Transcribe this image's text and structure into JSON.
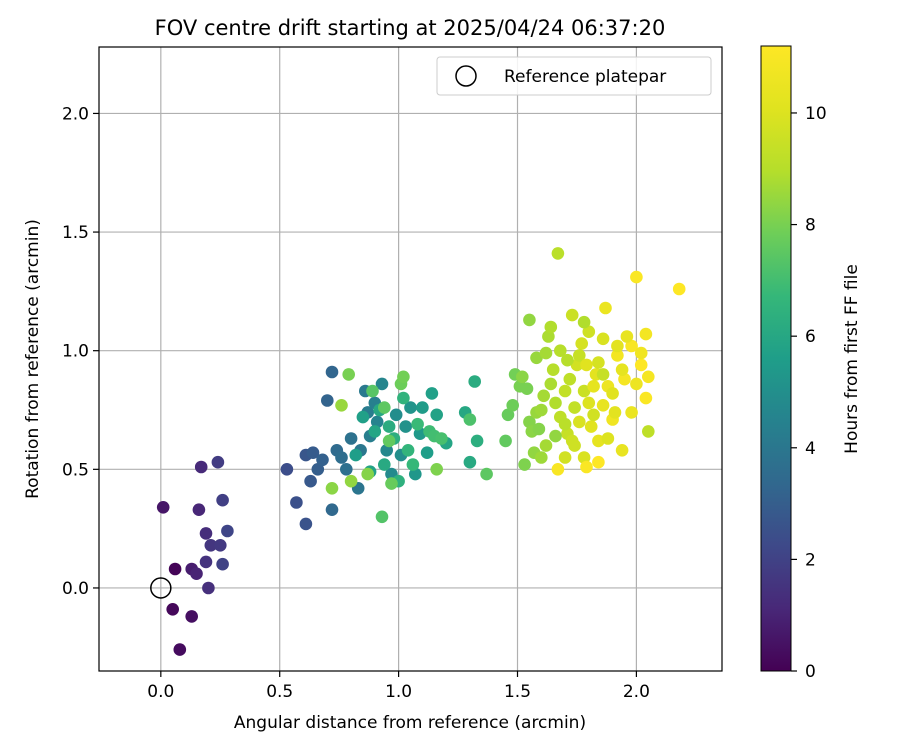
{
  "chart_data": {
    "type": "scatter",
    "title": "FOV centre drift starting at 2025/04/24 06:37:20",
    "xlabel": "Angular distance from reference (arcmin)",
    "ylabel": "Rotation from reference (arcmin)",
    "xlim": [
      -0.26,
      2.36
    ],
    "ylim": [
      -0.35,
      2.28
    ],
    "xticks": [
      0.0,
      0.5,
      1.0,
      1.5,
      2.0
    ],
    "xtick_labels": [
      "0.0",
      "0.5",
      "1.0",
      "1.5",
      "2.0"
    ],
    "yticks": [
      0.0,
      0.5,
      1.0,
      1.5,
      2.0
    ],
    "ytick_labels": [
      "0.0",
      "0.5",
      "1.0",
      "1.5",
      "2.0"
    ],
    "grid": true,
    "legend": {
      "position": "top-right",
      "entries": [
        "Reference platepar"
      ]
    },
    "reference_point": {
      "x": 0.0,
      "y": 0.0,
      "label": "Reference platepar"
    },
    "colorbar": {
      "label": "Hours from first FF file",
      "colormap": "viridis",
      "range": [
        0,
        11.2
      ],
      "ticks": [
        0,
        2,
        4,
        6,
        8,
        10
      ],
      "tick_labels": [
        "0",
        "2",
        "4",
        "6",
        "8",
        "10"
      ]
    },
    "points": [
      [
        0.06,
        0.08,
        0.1
      ],
      [
        0.05,
        -0.09,
        0.2
      ],
      [
        0.08,
        -0.26,
        0.3
      ],
      [
        0.13,
        -0.12,
        0.4
      ],
      [
        0.01,
        0.34,
        0.6
      ],
      [
        0.13,
        0.08,
        0.8
      ],
      [
        0.15,
        0.06,
        1.0
      ],
      [
        0.16,
        0.33,
        1.1
      ],
      [
        0.17,
        0.51,
        1.2
      ],
      [
        0.19,
        0.23,
        1.3
      ],
      [
        0.2,
        0.0,
        1.4
      ],
      [
        0.19,
        0.11,
        1.5
      ],
      [
        0.21,
        0.18,
        1.6
      ],
      [
        0.25,
        0.18,
        1.7
      ],
      [
        0.24,
        0.53,
        1.8
      ],
      [
        0.26,
        0.37,
        1.9
      ],
      [
        0.26,
        0.1,
        2.0
      ],
      [
        0.28,
        0.24,
        2.1
      ],
      [
        0.53,
        0.5,
        2.4
      ],
      [
        0.57,
        0.36,
        2.5
      ],
      [
        0.61,
        0.27,
        2.6
      ],
      [
        0.61,
        0.56,
        2.7
      ],
      [
        0.63,
        0.45,
        2.8
      ],
      [
        0.64,
        0.57,
        2.9
      ],
      [
        0.66,
        0.5,
        3.0
      ],
      [
        0.68,
        0.54,
        3.1
      ],
      [
        0.7,
        0.79,
        3.2
      ],
      [
        0.72,
        0.91,
        3.3
      ],
      [
        0.72,
        0.33,
        3.4
      ],
      [
        0.74,
        0.58,
        3.5
      ],
      [
        0.76,
        0.55,
        3.6
      ],
      [
        0.78,
        0.5,
        3.7
      ],
      [
        0.8,
        0.63,
        3.8
      ],
      [
        0.83,
        0.42,
        3.9
      ],
      [
        0.84,
        0.58,
        4.0
      ],
      [
        0.86,
        0.83,
        4.1
      ],
      [
        0.87,
        0.74,
        4.2
      ],
      [
        0.88,
        0.64,
        4.3
      ],
      [
        0.9,
        0.78,
        4.4
      ],
      [
        0.91,
        0.7,
        4.5
      ],
      [
        0.93,
        0.86,
        4.6
      ],
      [
        0.95,
        0.58,
        4.7
      ],
      [
        0.97,
        0.48,
        4.8
      ],
      [
        0.99,
        0.73,
        4.9
      ],
      [
        1.01,
        0.56,
        5.0
      ],
      [
        1.03,
        0.68,
        5.1
      ],
      [
        1.05,
        0.76,
        5.2
      ],
      [
        1.07,
        0.48,
        5.3
      ],
      [
        1.09,
        0.65,
        5.4
      ],
      [
        1.1,
        0.76,
        5.5
      ],
      [
        1.12,
        0.57,
        5.6
      ],
      [
        1.14,
        0.82,
        5.7
      ],
      [
        1.16,
        0.73,
        5.8
      ],
      [
        1.2,
        0.61,
        5.9
      ],
      [
        1.28,
        0.74,
        6.0
      ],
      [
        1.3,
        0.53,
        6.1
      ],
      [
        1.32,
        0.87,
        6.2
      ],
      [
        1.33,
        0.62,
        6.3
      ],
      [
        0.82,
        0.56,
        5.6
      ],
      [
        0.85,
        0.72,
        5.7
      ],
      [
        0.88,
        0.49,
        5.8
      ],
      [
        0.9,
        0.66,
        5.9
      ],
      [
        0.92,
        0.75,
        6.0
      ],
      [
        0.94,
        0.52,
        6.1
      ],
      [
        0.96,
        0.68,
        6.2
      ],
      [
        0.98,
        0.63,
        6.3
      ],
      [
        1.0,
        0.45,
        6.4
      ],
      [
        1.02,
        0.8,
        6.5
      ],
      [
        1.04,
        0.58,
        6.6
      ],
      [
        1.06,
        0.52,
        6.7
      ],
      [
        1.08,
        0.69,
        6.8
      ],
      [
        1.13,
        0.66,
        6.9
      ],
      [
        1.15,
        0.64,
        7.0
      ],
      [
        1.18,
        0.63,
        7.1
      ],
      [
        1.3,
        0.71,
        7.2
      ],
      [
        0.93,
        0.3,
        7.3
      ],
      [
        0.89,
        0.83,
        7.4
      ],
      [
        0.94,
        0.76,
        7.5
      ],
      [
        0.96,
        0.62,
        7.6
      ],
      [
        0.97,
        0.44,
        7.7
      ],
      [
        1.01,
        0.86,
        7.8
      ],
      [
        1.02,
        0.89,
        7.9
      ],
      [
        0.79,
        0.9,
        8.0
      ],
      [
        1.16,
        0.5,
        8.1
      ],
      [
        0.87,
        0.48,
        8.2
      ],
      [
        0.72,
        0.42,
        8.3
      ],
      [
        0.8,
        0.45,
        8.4
      ],
      [
        0.76,
        0.77,
        8.5
      ],
      [
        1.37,
        0.48,
        7.5
      ],
      [
        1.45,
        0.62,
        7.6
      ],
      [
        1.46,
        0.73,
        7.7
      ],
      [
        1.48,
        0.77,
        7.8
      ],
      [
        1.49,
        0.9,
        7.9
      ],
      [
        1.51,
        0.85,
        8.0
      ],
      [
        1.53,
        0.52,
        8.1
      ],
      [
        1.55,
        0.7,
        8.2
      ],
      [
        1.56,
        0.66,
        8.3
      ],
      [
        1.57,
        0.57,
        8.4
      ],
      [
        1.58,
        0.74,
        8.5
      ],
      [
        1.6,
        0.55,
        8.6
      ],
      [
        1.61,
        0.81,
        8.7
      ],
      [
        1.63,
        1.06,
        8.8
      ],
      [
        1.64,
        1.1,
        8.9
      ],
      [
        1.65,
        0.92,
        9.0
      ],
      [
        1.67,
        1.41,
        9.1
      ],
      [
        1.68,
        0.72,
        9.2
      ],
      [
        1.7,
        0.83,
        9.3
      ],
      [
        1.71,
        0.65,
        9.4
      ],
      [
        1.73,
        1.15,
        9.5
      ],
      [
        1.74,
        0.6,
        9.6
      ],
      [
        1.75,
        0.94,
        9.7
      ],
      [
        1.77,
        1.03,
        9.8
      ],
      [
        1.78,
        0.55,
        9.9
      ],
      [
        1.8,
        0.78,
        10.0
      ],
      [
        1.81,
        0.68,
        10.1
      ],
      [
        1.83,
        0.9,
        10.2
      ],
      [
        1.84,
        0.62,
        10.3
      ],
      [
        1.86,
        0.77,
        10.4
      ],
      [
        1.87,
        1.18,
        10.5
      ],
      [
        1.88,
        0.85,
        10.6
      ],
      [
        1.9,
        0.71,
        10.7
      ],
      [
        1.92,
        0.98,
        10.8
      ],
      [
        1.95,
        0.88,
        10.9
      ],
      [
        1.98,
        1.02,
        11.0
      ],
      [
        2.0,
        1.31,
        11.1
      ],
      [
        2.02,
        0.94,
        11.2
      ],
      [
        2.04,
        0.8,
        11.1
      ],
      [
        2.18,
        1.26,
        11.2
      ],
      [
        1.52,
        0.89,
        8.3
      ],
      [
        1.55,
        1.13,
        8.4
      ],
      [
        1.58,
        0.97,
        8.5
      ],
      [
        1.6,
        0.75,
        8.6
      ],
      [
        1.62,
        0.6,
        8.7
      ],
      [
        1.64,
        0.86,
        8.8
      ],
      [
        1.66,
        0.78,
        8.9
      ],
      [
        1.68,
        1.0,
        9.0
      ],
      [
        1.7,
        0.69,
        9.1
      ],
      [
        1.72,
        0.88,
        9.2
      ],
      [
        1.74,
        0.76,
        9.3
      ],
      [
        1.76,
        0.98,
        9.4
      ],
      [
        1.78,
        0.83,
        9.5
      ],
      [
        1.8,
        1.08,
        9.6
      ],
      [
        1.82,
        0.73,
        9.7
      ],
      [
        1.84,
        0.95,
        9.8
      ],
      [
        1.86,
        1.05,
        9.9
      ],
      [
        1.88,
        0.63,
        10.0
      ],
      [
        1.9,
        0.82,
        10.1
      ],
      [
        1.92,
        1.02,
        10.2
      ],
      [
        1.94,
        0.92,
        10.3
      ],
      [
        1.96,
        1.06,
        10.4
      ],
      [
        1.98,
        0.74,
        10.5
      ],
      [
        2.0,
        0.86,
        10.6
      ],
      [
        2.02,
        0.99,
        10.7
      ],
      [
        2.04,
        1.07,
        10.8
      ],
      [
        2.05,
        0.89,
        10.9
      ],
      [
        1.67,
        0.5,
        11.0
      ],
      [
        1.79,
        0.51,
        11.1
      ],
      [
        1.84,
        0.53,
        11.2
      ],
      [
        1.73,
        0.62,
        9.6
      ],
      [
        1.76,
        0.7,
        9.9
      ],
      [
        1.79,
        0.94,
        10.1
      ],
      [
        1.82,
        0.85,
        10.3
      ],
      [
        1.71,
        0.96,
        9.0
      ],
      [
        1.66,
        0.64,
        8.4
      ],
      [
        1.59,
        0.67,
        8.2
      ],
      [
        1.54,
        0.84,
        8.0
      ],
      [
        1.62,
        0.99,
        8.7
      ],
      [
        1.78,
        1.12,
        8.9
      ],
      [
        1.86,
        0.9,
        9.4
      ],
      [
        1.91,
        0.74,
        10.2
      ],
      [
        2.05,
        0.66,
        9.2
      ],
      [
        1.7,
        0.55,
        9.7
      ],
      [
        1.94,
        0.58,
        10.4
      ]
    ]
  }
}
